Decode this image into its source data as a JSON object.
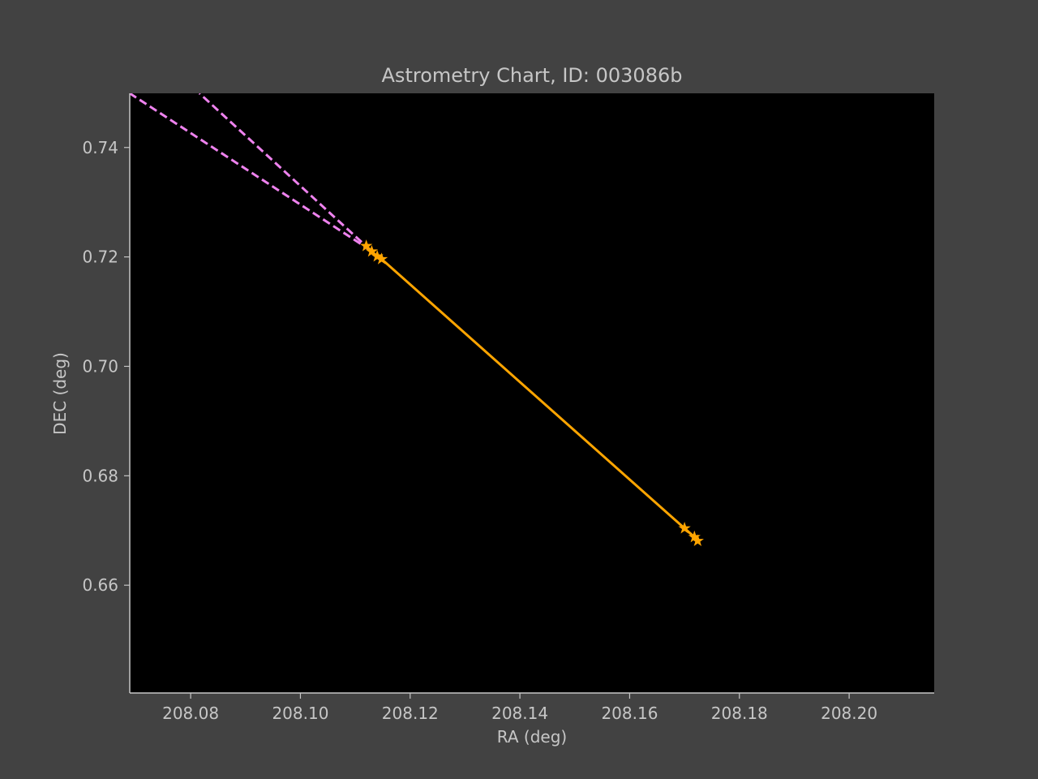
{
  "chart_data": {
    "type": "line",
    "title": "Astrometry Chart, ID: 003086b",
    "xlabel": "RA (deg)",
    "ylabel": "DEC (deg)",
    "xlim": [
      208.0689,
      208.2155
    ],
    "ylim": [
      0.6403,
      0.7499
    ],
    "xticks": [
      "208.08",
      "208.10",
      "208.12",
      "208.14",
      "208.16",
      "208.18",
      "208.20"
    ],
    "yticks": [
      "0.66",
      "0.68",
      "0.70",
      "0.72",
      "0.74"
    ],
    "grid": false,
    "plot_background": "#000000",
    "figure_background": "#424242",
    "text_color": "#c6c6c6",
    "series": [
      {
        "style": "dashed",
        "color": "#ee82ee",
        "points": [
          [
            208.1128,
            0.7212
          ],
          [
            208.0689,
            0.7499
          ]
        ]
      },
      {
        "style": "dashed",
        "color": "#ee82ee",
        "points": [
          [
            208.1128,
            0.7212
          ],
          [
            208.0816,
            0.7499
          ]
        ]
      },
      {
        "style": "solid",
        "color": "#ffa500",
        "marker": "star",
        "points": [
          [
            208.112,
            0.722
          ],
          [
            208.113,
            0.721
          ],
          [
            208.114,
            0.7201
          ],
          [
            208.1148,
            0.7196
          ],
          [
            208.17,
            0.6704
          ],
          [
            208.1718,
            0.6688
          ],
          [
            208.1724,
            0.6681
          ]
        ]
      }
    ]
  }
}
